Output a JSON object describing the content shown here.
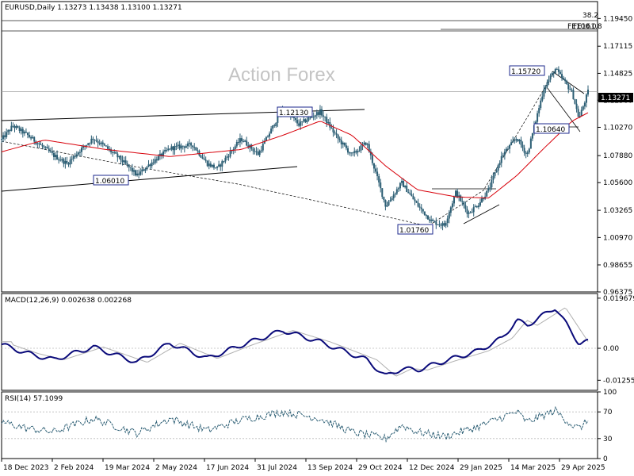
{
  "header": {
    "symbol_line": "EURUSD,Daily  1.13273 1.13438 1.13100 1.13271",
    "watermark": "Action Forex"
  },
  "colors": {
    "candle": "#2c5e74",
    "sma": "#d8000a",
    "macd": "#0a0a7a",
    "signal": "#b0b0b0",
    "rsi": "#2c5e74",
    "price_tag_bg": "#000000",
    "label_border": "#1e2a8c"
  },
  "chart_data": [
    {
      "type": "candlestick",
      "title": "EURUSD,Daily",
      "ohlc_last": {
        "open": 1.13273,
        "high": 1.13438,
        "low": 1.131,
        "close": 1.13271
      },
      "y_ticks": [
        "1.19450",
        "1.17115",
        "1.14825",
        "1.12560",
        "1.10270",
        "1.07880",
        "1.05600",
        "1.03265",
        "1.00970",
        "0.98655",
        "0.96375"
      ],
      "ylim": [
        0.96375,
        1.2088
      ],
      "x_ticks": [
        "18 Dec 2023",
        "2 Feb 2024",
        "19 Mar 2024",
        "2 May 2024",
        "17 Jun 2024",
        "31 Jul 2024",
        "13 Sep 2024",
        "29 Oct 2024",
        "12 Dec 2024",
        "29 Jan 2025",
        "14 Mar 2025",
        "29 Apr 2025"
      ],
      "current_price": "1.13271",
      "fib_labels": [
        "38.2",
        "FE100.0",
        "FE161.8"
      ],
      "annotations": [
        "1.15720",
        "1.12130",
        "1.10640",
        "1.06010",
        "1.01760"
      ],
      "close_path": [
        [
          "2023-12-18",
          1.0923
        ],
        [
          "2023-12-28",
          1.104
        ],
        [
          "2024-01-10",
          1.096
        ],
        [
          "2024-01-25",
          1.085
        ],
        [
          "2024-02-02",
          1.079
        ],
        [
          "2024-02-14",
          1.072
        ],
        [
          "2024-02-25",
          1.083
        ],
        [
          "2024-03-08",
          1.0935
        ],
        [
          "2024-03-19",
          1.086
        ],
        [
          "2024-04-01",
          1.076
        ],
        [
          "2024-04-16",
          1.062
        ],
        [
          "2024-04-25",
          1.07
        ],
        [
          "2024-05-15",
          1.085
        ],
        [
          "2024-06-04",
          1.088
        ],
        [
          "2024-06-17",
          1.072
        ],
        [
          "2024-06-26",
          1.068
        ],
        [
          "2024-07-17",
          1.093
        ],
        [
          "2024-08-01",
          1.08
        ],
        [
          "2024-08-23",
          1.119
        ],
        [
          "2024-09-06",
          1.105
        ],
        [
          "2024-09-25",
          1.116
        ],
        [
          "2024-10-10",
          1.094
        ],
        [
          "2024-10-23",
          1.079
        ],
        [
          "2024-11-05",
          1.09
        ],
        [
          "2024-11-22",
          1.036
        ],
        [
          "2024-12-06",
          1.056
        ],
        [
          "2024-12-20",
          1.037
        ],
        [
          "2025-01-02",
          1.023
        ],
        [
          "2025-01-13",
          1.02
        ],
        [
          "2025-01-23",
          1.048
        ],
        [
          "2025-02-03",
          1.03
        ],
        [
          "2025-02-12",
          1.038
        ],
        [
          "2025-02-21",
          1.05
        ],
        [
          "2025-03-05",
          1.079
        ],
        [
          "2025-03-18",
          1.094
        ],
        [
          "2025-03-27",
          1.079
        ],
        [
          "2025-04-11",
          1.136
        ],
        [
          "2025-04-21",
          1.152
        ],
        [
          "2025-05-06",
          1.132
        ],
        [
          "2025-05-12",
          1.11
        ],
        [
          "2025-05-20",
          1.1327
        ]
      ],
      "sma_path": [
        [
          "2023-12-18",
          1.082
        ],
        [
          "2024-01-25",
          1.092
        ],
        [
          "2024-03-19",
          1.084
        ],
        [
          "2024-05-15",
          1.078
        ],
        [
          "2024-07-17",
          1.084
        ],
        [
          "2024-08-23",
          1.096
        ],
        [
          "2024-09-25",
          1.108
        ],
        [
          "2024-10-23",
          1.096
        ],
        [
          "2024-11-22",
          1.07
        ],
        [
          "2024-12-20",
          1.05
        ],
        [
          "2025-01-23",
          1.044
        ],
        [
          "2025-02-21",
          1.043
        ],
        [
          "2025-03-18",
          1.062
        ],
        [
          "2025-04-11",
          1.085
        ],
        [
          "2025-05-06",
          1.108
        ],
        [
          "2025-05-20",
          1.115
        ]
      ]
    },
    {
      "type": "line",
      "title": "MACD(12,26,9) 0.002638 0.002268",
      "y_ticks": [
        "0.019679",
        "0.00",
        "-0.012552"
      ],
      "ylim": [
        -0.0165,
        0.0215
      ],
      "series": [
        {
          "name": "MACD",
          "values": [
            [
              "2023-12-18",
              0.0015
            ],
            [
              "2024-01-10",
              -0.002
            ],
            [
              "2024-02-02",
              -0.0045
            ],
            [
              "2024-03-08",
              0.0005
            ],
            [
              "2024-04-16",
              -0.0055
            ],
            [
              "2024-05-15",
              0.002
            ],
            [
              "2024-06-17",
              -0.004
            ],
            [
              "2024-07-17",
              0.0012
            ],
            [
              "2024-08-23",
              0.007
            ],
            [
              "2024-09-25",
              0.0025
            ],
            [
              "2024-11-05",
              -0.0045
            ],
            [
              "2024-11-22",
              -0.011
            ],
            [
              "2024-12-06",
              -0.008
            ],
            [
              "2024-12-20",
              -0.0085
            ],
            [
              "2025-01-13",
              -0.005
            ],
            [
              "2025-02-12",
              -0.001
            ],
            [
              "2025-03-05",
              0.004
            ],
            [
              "2025-03-18",
              0.011
            ],
            [
              "2025-03-27",
              0.009
            ],
            [
              "2025-04-21",
              0.016
            ],
            [
              "2025-05-06",
              0.006
            ],
            [
              "2025-05-12",
              0.002
            ],
            [
              "2025-05-20",
              0.0026
            ]
          ]
        }
      ]
    },
    {
      "type": "line",
      "title": "RSI(14) 57.1099",
      "y_ticks": [
        "100",
        "70",
        "30",
        "0"
      ],
      "ylim": [
        0,
        100
      ],
      "series": [
        {
          "name": "RSI",
          "values": [
            [
              "2023-12-18",
              55
            ],
            [
              "2024-01-10",
              45
            ],
            [
              "2024-02-02",
              40
            ],
            [
              "2024-03-08",
              60
            ],
            [
              "2024-04-16",
              38
            ],
            [
              "2024-05-15",
              60
            ],
            [
              "2024-06-17",
              42
            ],
            [
              "2024-07-17",
              58
            ],
            [
              "2024-08-23",
              70
            ],
            [
              "2024-09-25",
              60
            ],
            [
              "2024-10-23",
              40
            ],
            [
              "2024-11-22",
              30
            ],
            [
              "2024-12-06",
              50
            ],
            [
              "2024-12-20",
              40
            ],
            [
              "2025-01-13",
              33
            ],
            [
              "2025-02-12",
              48
            ],
            [
              "2025-03-05",
              62
            ],
            [
              "2025-03-18",
              70
            ],
            [
              "2025-03-27",
              55
            ],
            [
              "2025-04-21",
              72
            ],
            [
              "2025-05-06",
              50
            ],
            [
              "2025-05-12",
              45
            ],
            [
              "2025-05-20",
              57
            ]
          ]
        }
      ]
    }
  ]
}
